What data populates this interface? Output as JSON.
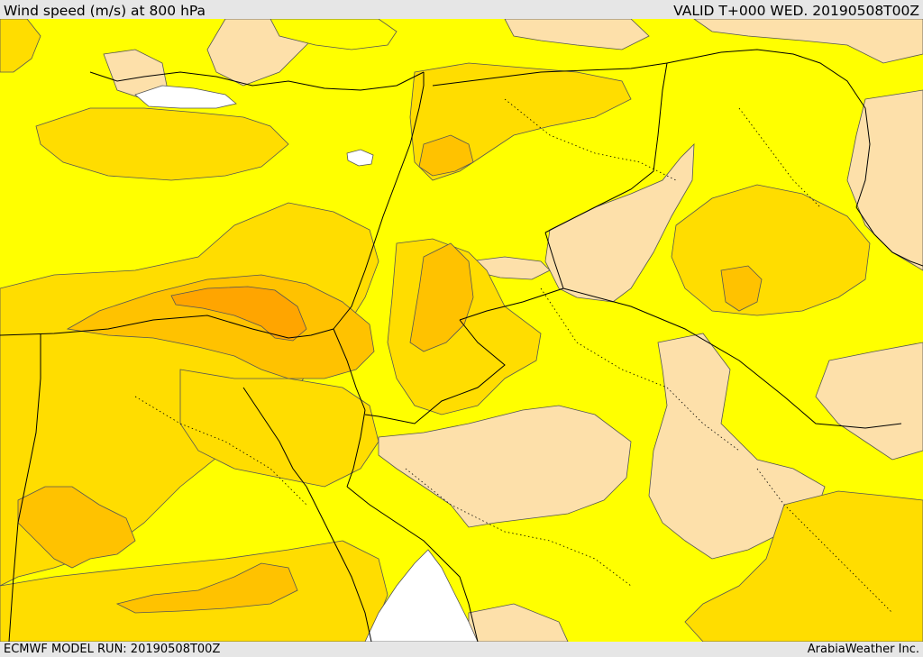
{
  "header": {
    "title": "Wind speed (m/s) at 800 hPa",
    "valid": "VALID T+000 WED. 20190508T00Z"
  },
  "footer": {
    "model_run": "ECMWF MODEL RUN: 20190508T00Z",
    "credit": "ArabiaWeather Inc."
  },
  "map": {
    "field": "wind speed",
    "level": "800 hPa",
    "palette": {
      "calm": "#fde0aa",
      "low": "#ffff00",
      "moderate": "#ffdd00",
      "fresh": "#ffc200",
      "strong": "#ffa500",
      "sea_no_data": "#ffffff"
    },
    "line_colors": {
      "contour": "#555555",
      "borders": "#000000"
    }
  }
}
